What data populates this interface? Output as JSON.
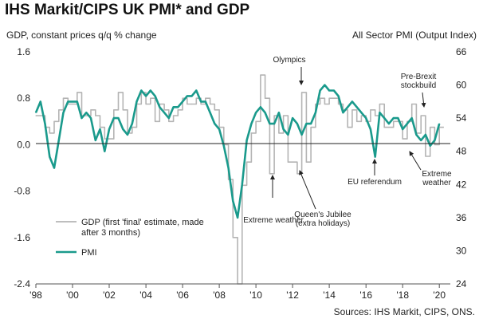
{
  "title": "IHS Markit/CIPS UK PMI* and GDP",
  "left_axis_title": "GDP, constant prices q/q % change",
  "right_axis_title": "All Sector PMI (Output Index)",
  "source": "Sources: IHS Markit, CIPS, ONS.",
  "chart_data": {
    "type": "line",
    "left_axis": {
      "ylim": [
        -2.4,
        1.6
      ],
      "ticks": [
        "1.6",
        "0.8",
        "0.0",
        "-0.8",
        "-1.6",
        "-2.4"
      ]
    },
    "right_axis": {
      "ylim": [
        24,
        66
      ],
      "ticks": [
        "66",
        "60",
        "54",
        "48",
        "42",
        "36",
        "30",
        "24"
      ]
    },
    "x_axis": {
      "xlim": [
        1998,
        2020.6
      ],
      "ticks": [
        "'98",
        "'00",
        "'02",
        "'04",
        "'06",
        "'08",
        "'10",
        "'12",
        "'14",
        "'16",
        "'18",
        "'20"
      ]
    },
    "grid": false,
    "legend": {
      "placement": "lower-left",
      "entries": [
        {
          "label_line1": "GDP (first 'final' estimate, made",
          "label_line2": "after 3 months)",
          "color": "#b4b4b4"
        },
        {
          "label": "PMI",
          "color": "#1a9a8c"
        }
      ]
    },
    "annotations": [
      {
        "text": "Olympics",
        "x": 2012.6,
        "y": 57
      },
      {
        "text": "Pre-Brexit",
        "text2": "stockbuild",
        "x": 2019.1,
        "y": 56
      },
      {
        "text": "EU referendum",
        "x": 2016.4,
        "y": 48
      },
      {
        "text": "Extreme",
        "text2": "weather",
        "x": 2018.2,
        "y": 50
      },
      {
        "text": "Extreme weather",
        "x": 2010.8,
        "y": -0.45
      },
      {
        "text": "Queen's Jubilee",
        "text2": "(extra holidays)",
        "x": 2012.4,
        "y": -0.45
      }
    ],
    "series": [
      {
        "name": "GDP (first 'final' estimate, made after 3 months)",
        "axis": "left",
        "color": "#b4b4b4",
        "step": true,
        "x": [
          1998.0,
          1998.25,
          1998.5,
          1998.75,
          1999.0,
          1999.25,
          1999.5,
          1999.75,
          2000.0,
          2000.25,
          2000.5,
          2000.75,
          2001.0,
          2001.25,
          2001.5,
          2001.75,
          2002.0,
          2002.25,
          2002.5,
          2002.75,
          2003.0,
          2003.25,
          2003.5,
          2003.75,
          2004.0,
          2004.25,
          2004.5,
          2004.75,
          2005.0,
          2005.25,
          2005.5,
          2005.75,
          2006.0,
          2006.25,
          2006.5,
          2006.75,
          2007.0,
          2007.25,
          2007.5,
          2007.75,
          2008.0,
          2008.25,
          2008.5,
          2008.75,
          2009.0,
          2009.25,
          2009.5,
          2009.75,
          2010.0,
          2010.25,
          2010.5,
          2010.75,
          2011.0,
          2011.25,
          2011.5,
          2011.75,
          2012.0,
          2012.25,
          2012.5,
          2012.75,
          2013.0,
          2013.25,
          2013.5,
          2013.75,
          2014.0,
          2014.25,
          2014.5,
          2014.75,
          2015.0,
          2015.25,
          2015.5,
          2015.75,
          2016.0,
          2016.25,
          2016.5,
          2016.75,
          2017.0,
          2017.25,
          2017.5,
          2017.75,
          2018.0,
          2018.25,
          2018.5,
          2018.75,
          2019.0,
          2019.25,
          2019.5,
          2019.75,
          2020.0
        ],
        "values": [
          0.5,
          0.5,
          0.3,
          0.2,
          0.4,
          0.6,
          0.8,
          0.7,
          0.7,
          0.9,
          0.5,
          0.5,
          0.6,
          0.5,
          0.3,
          0.1,
          0.1,
          0.6,
          0.9,
          0.6,
          0.2,
          0.3,
          0.7,
          0.9,
          0.7,
          0.8,
          0.4,
          0.7,
          0.6,
          0.4,
          0.5,
          0.6,
          0.8,
          0.7,
          0.7,
          0.8,
          0.7,
          0.8,
          0.7,
          0.6,
          0.3,
          0.0,
          -0.6,
          -1.6,
          -2.4,
          -0.7,
          -0.3,
          0.2,
          0.4,
          1.2,
          0.8,
          -0.5,
          0.5,
          0.2,
          0.5,
          -0.3,
          -0.3,
          -0.5,
          0.9,
          -0.3,
          0.3,
          0.7,
          0.8,
          0.7,
          0.8,
          0.8,
          0.7,
          0.6,
          0.3,
          0.6,
          0.4,
          0.5,
          0.4,
          0.6,
          0.5,
          0.7,
          0.3,
          0.3,
          0.4,
          0.4,
          0.1,
          0.4,
          0.7,
          0.2,
          0.5,
          -0.2,
          0.3,
          0.0,
          0.3
        ]
      },
      {
        "name": "PMI",
        "axis": "right",
        "color": "#1a9a8c",
        "x": [
          1998.0,
          1998.25,
          1998.5,
          1998.75,
          1999.0,
          1999.25,
          1999.5,
          1999.75,
          2000.0,
          2000.25,
          2000.5,
          2000.75,
          2001.0,
          2001.25,
          2001.5,
          2001.75,
          2002.0,
          2002.25,
          2002.5,
          2002.75,
          2003.0,
          2003.25,
          2003.5,
          2003.75,
          2004.0,
          2004.25,
          2004.5,
          2004.75,
          2005.0,
          2005.25,
          2005.5,
          2005.75,
          2006.0,
          2006.25,
          2006.5,
          2006.75,
          2007.0,
          2007.25,
          2007.5,
          2007.75,
          2008.0,
          2008.25,
          2008.5,
          2008.75,
          2009.0,
          2009.25,
          2009.5,
          2009.75,
          2010.0,
          2010.25,
          2010.5,
          2010.75,
          2011.0,
          2011.25,
          2011.5,
          2011.75,
          2012.0,
          2012.25,
          2012.5,
          2012.75,
          2013.0,
          2013.25,
          2013.5,
          2013.75,
          2014.0,
          2014.25,
          2014.5,
          2014.75,
          2015.0,
          2015.25,
          2015.5,
          2015.75,
          2016.0,
          2016.25,
          2016.5,
          2016.75,
          2017.0,
          2017.25,
          2017.5,
          2017.75,
          2018.0,
          2018.25,
          2018.5,
          2018.75,
          2019.0,
          2019.25,
          2019.5,
          2019.75,
          2020.0
        ],
        "values": [
          55,
          57,
          53,
          47,
          45,
          50,
          55,
          57,
          57,
          57,
          54,
          55,
          54,
          50,
          52,
          48,
          52,
          54,
          54,
          52,
          51,
          53,
          57,
          59,
          58,
          59,
          58,
          56,
          55,
          54,
          56,
          56,
          57,
          58,
          58,
          59,
          57,
          57,
          55,
          53,
          52,
          49,
          45,
          39,
          36,
          42,
          50,
          53,
          55,
          56,
          55,
          53,
          53,
          55,
          52,
          51,
          54,
          53,
          51,
          53,
          53,
          55,
          59,
          60,
          59,
          59,
          58,
          55,
          56,
          57,
          56,
          55,
          54,
          52,
          47,
          55,
          54,
          53,
          54,
          54,
          52,
          53,
          54,
          51,
          50,
          51,
          49,
          50,
          53
        ]
      }
    ]
  }
}
